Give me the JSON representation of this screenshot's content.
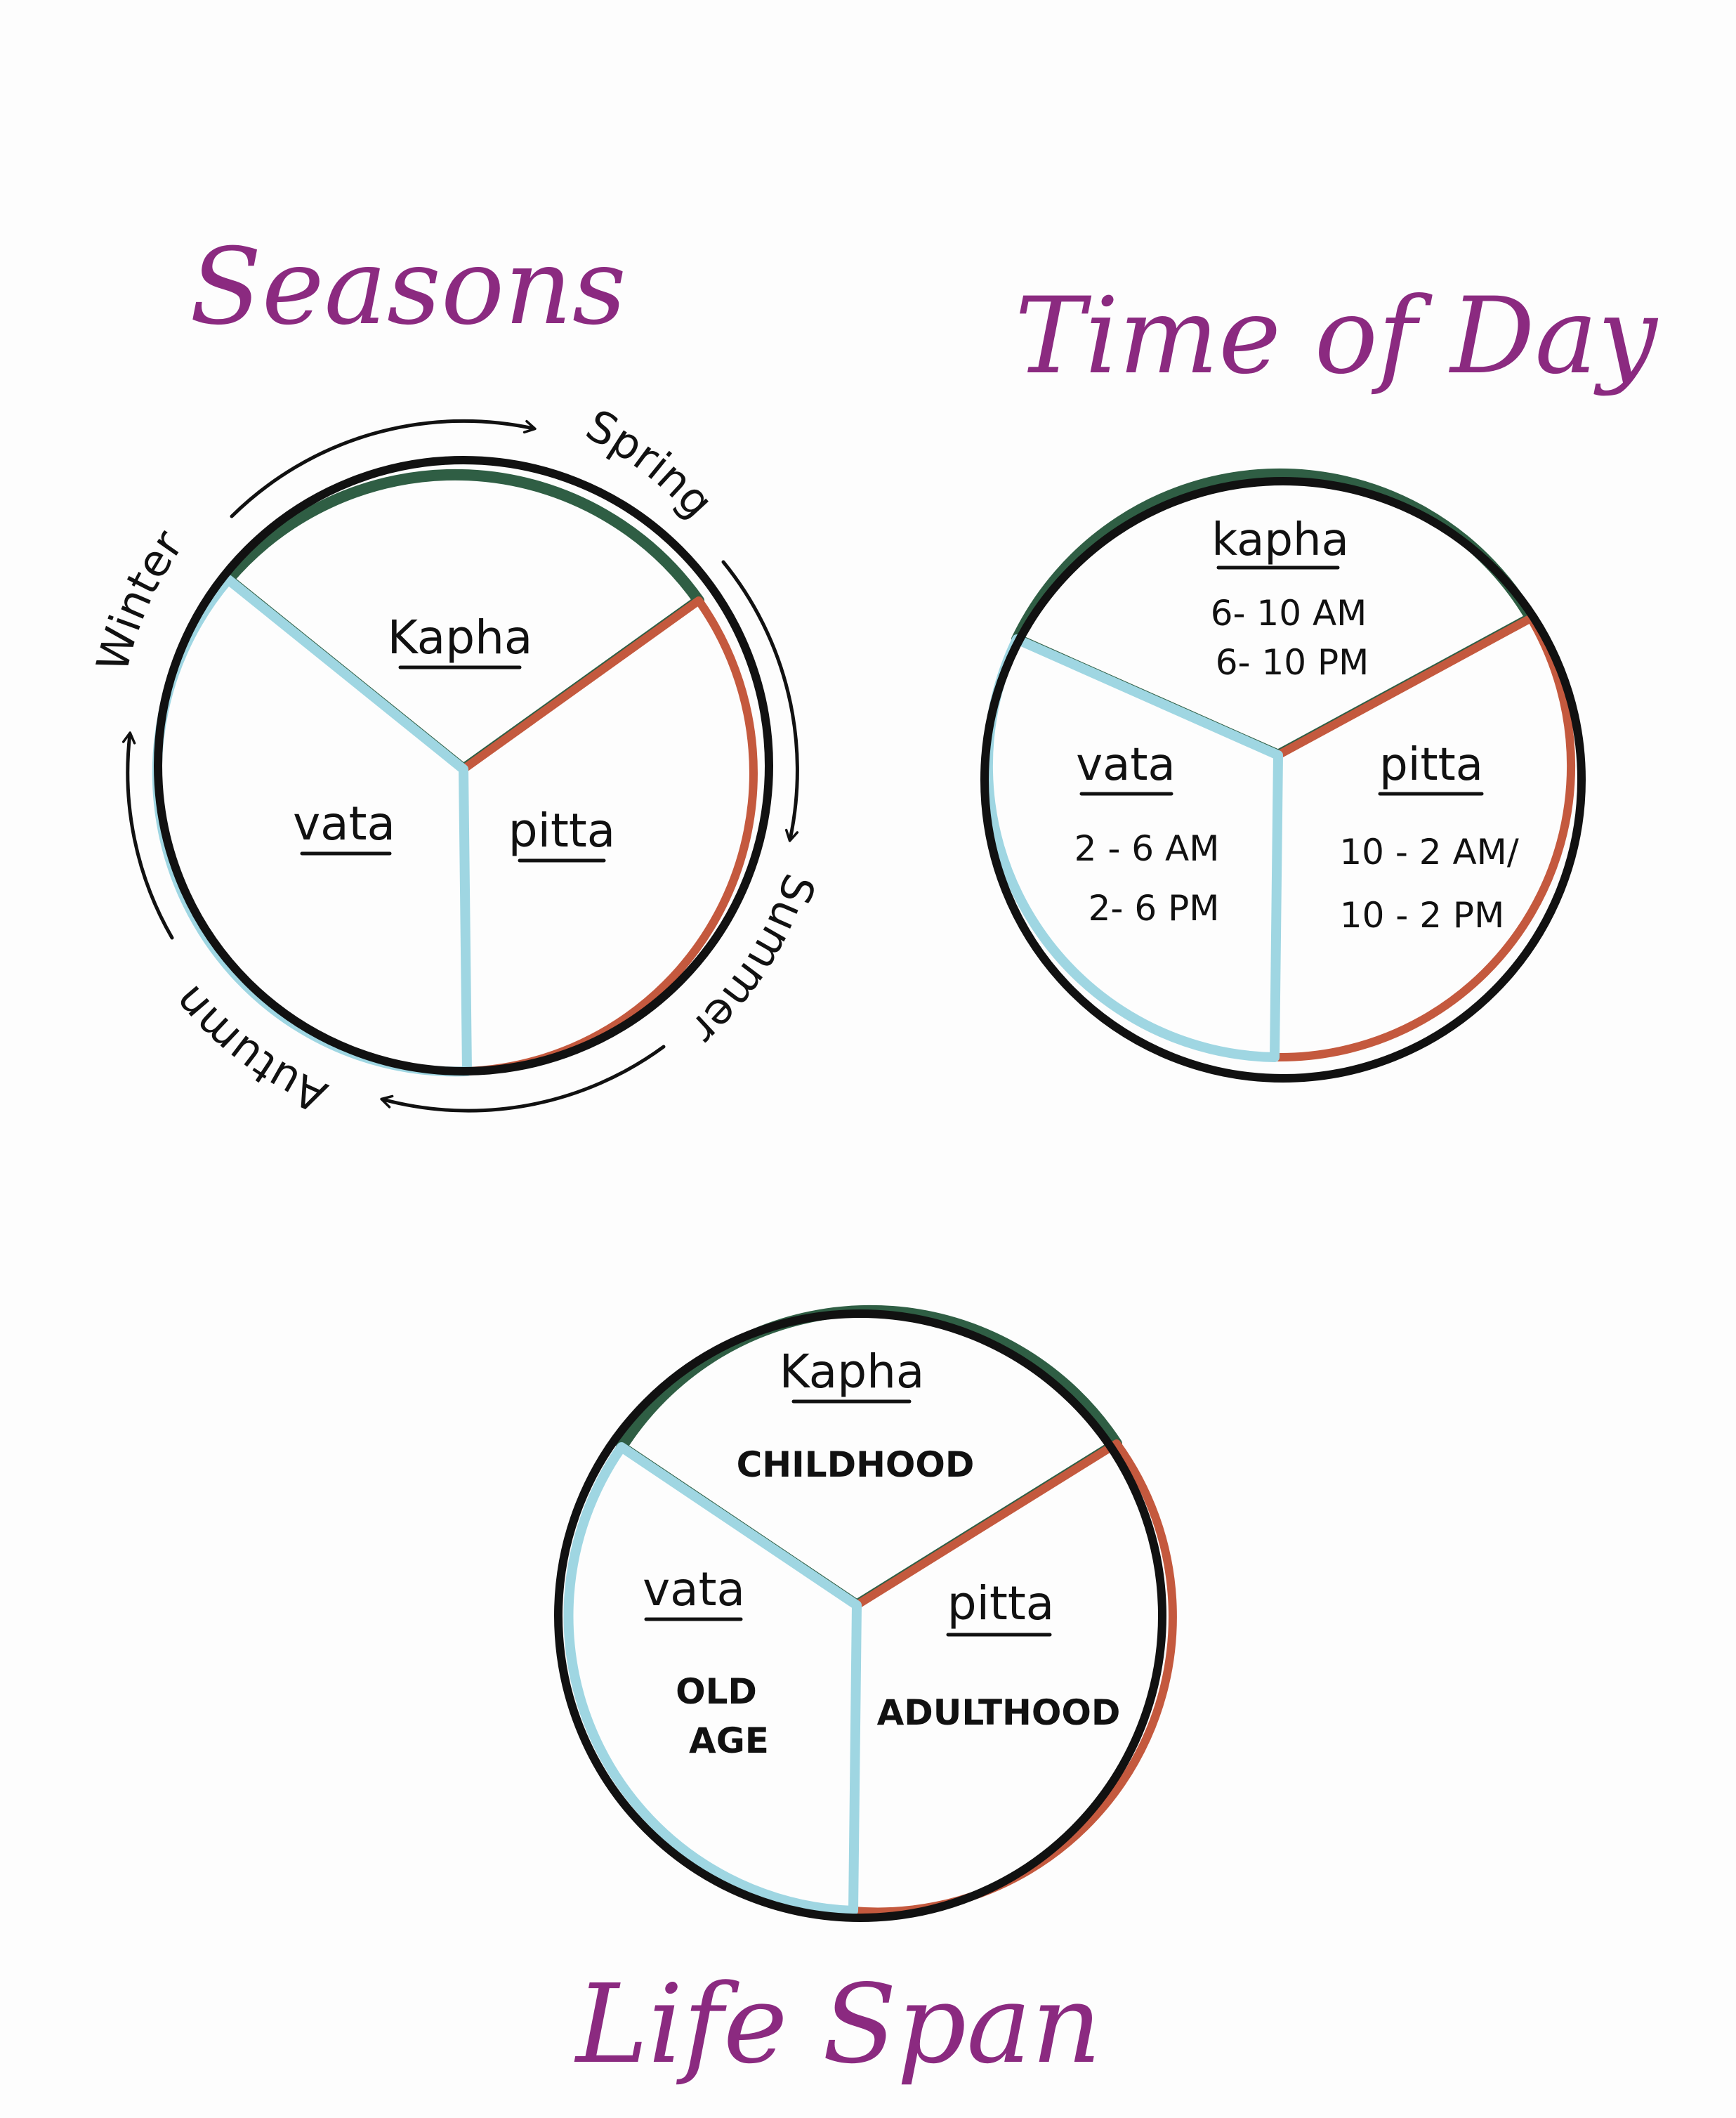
{
  "colors": {
    "heading": "#8b2a80",
    "kapha": "#2f5e44",
    "pitta": "#c4593e",
    "vata": "#9fd6e2",
    "ink": "#111111"
  },
  "seasons": {
    "title": "Seasons",
    "labels": {
      "spring": "Spring",
      "summer": "Summer",
      "autumn": "Autumn",
      "winter": "Winter"
    },
    "kapha": "Kapha",
    "vata": "vata",
    "pitta": "pitta"
  },
  "time_of_day": {
    "title": "Time of Day",
    "kapha": "kapha",
    "kapha_lines": [
      "6- 10 AM",
      "6- 10 PM"
    ],
    "vata": "vata",
    "vata_lines": [
      "2 - 6 AM",
      "2- 6 PM"
    ],
    "pitta": "pitta",
    "pitta_lines": [
      "10 - 2 AM/",
      "10 - 2 PM"
    ]
  },
  "life_span": {
    "title": "Life Span",
    "kapha": "Kapha",
    "kapha_stage": "CHILDHOOD",
    "vata": "vata",
    "vata_stage_lines": [
      "OLD",
      "AGE"
    ],
    "pitta": "pitta",
    "pitta_stage": "ADULTHOOD"
  }
}
